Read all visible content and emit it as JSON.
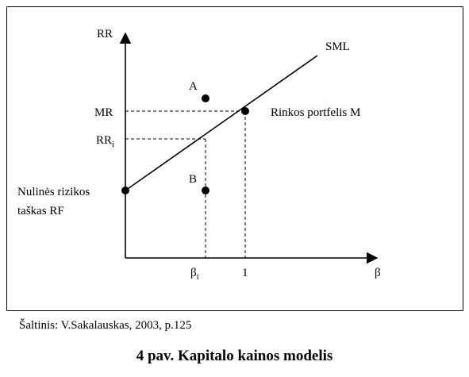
{
  "diagram": {
    "y_axis_label": "RR",
    "x_axis_label": "β",
    "line_label": "SML",
    "point_a_label": "A",
    "point_b_label": "B",
    "mr_label": "MR",
    "rri_label_main": "RR",
    "rri_label_sub": "i",
    "beta_i_label_main": "β",
    "beta_i_label_sub": "i",
    "beta_one_label": "1",
    "market_label": "Rinkos portfelis M",
    "rf_label_line1": "Nulinės rizikos",
    "rf_label_line2": "taškas RF"
  },
  "source_note": "Šaltinis: V.Sakalauskas, 2003, p.125",
  "caption": "4 pav. Kapitalo kainos modelis",
  "colors": {
    "ink": "#000000",
    "background": "#ffffff"
  }
}
